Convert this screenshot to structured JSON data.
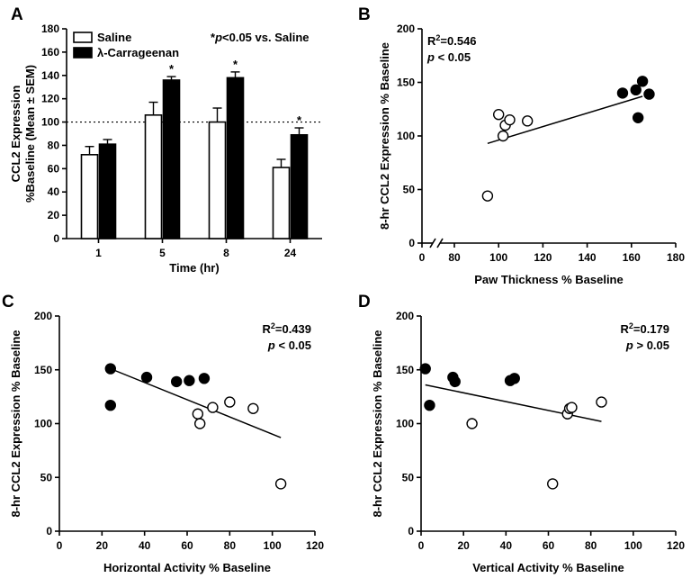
{
  "chart_data": [
    {
      "panel": "A",
      "type": "bar",
      "title": "",
      "xlabel": "Time (hr)",
      "ylabel_line1": "CCL2 Expression",
      "ylabel_line2": "%Baseline (Mean ± SEM)",
      "ylim": [
        0,
        180
      ],
      "yticks": [
        0,
        20,
        40,
        60,
        80,
        100,
        120,
        140,
        160,
        180
      ],
      "categories": [
        "1",
        "5",
        "8",
        "24"
      ],
      "reference_line": 100,
      "series": [
        {
          "name": "Saline",
          "color": "#ffffff",
          "values": [
            72,
            106,
            100,
            61
          ],
          "errors": [
            7,
            11,
            12,
            7
          ]
        },
        {
          "name": "λ-Carrageenan",
          "color": "#000000",
          "values": [
            81,
            136,
            138,
            89
          ],
          "errors": [
            4,
            3,
            5,
            6
          ]
        }
      ],
      "significance_marker": "*",
      "significant_categories": [
        "5",
        "8",
        "24"
      ],
      "annotation": {
        "star": "*",
        "p": "p",
        "rest": "<0.05 vs. Saline"
      }
    },
    {
      "panel": "B",
      "type": "scatter",
      "xlabel": "Paw Thickness % Baseline",
      "ylabel": "8-hr CCL2 Expression % Baseline",
      "ylim": [
        0,
        200
      ],
      "yticks": [
        0,
        50,
        100,
        150,
        200
      ],
      "xticks": [
        0,
        80,
        100,
        120,
        140,
        160,
        180
      ],
      "axis_break": true,
      "r2_prefix": "R",
      "r2_sup": "2",
      "r2_value": "=0.546",
      "p_letter": "p",
      "p_rest": " < 0.05",
      "saline_points": [
        [
          100,
          120
        ],
        [
          102,
          100
        ],
        [
          103,
          110
        ],
        [
          105,
          115
        ],
        [
          113,
          114
        ],
        [
          95,
          44
        ]
      ],
      "carrageenan_points": [
        [
          156,
          140
        ],
        [
          162,
          143
        ],
        [
          165,
          151
        ],
        [
          168,
          139
        ],
        [
          163,
          117
        ]
      ],
      "regression": [
        [
          95,
          93
        ],
        [
          165,
          137
        ]
      ]
    },
    {
      "panel": "C",
      "type": "scatter",
      "xlabel": "Horizontal Activity % Baseline",
      "ylabel": "8-hr CCL2 Expression % Baseline",
      "xlim": [
        0,
        120
      ],
      "ylim": [
        0,
        200
      ],
      "xticks": [
        0,
        20,
        40,
        60,
        80,
        100,
        120
      ],
      "yticks": [
        0,
        50,
        100,
        150,
        200
      ],
      "r2_prefix": "R",
      "r2_sup": "2",
      "r2_value": "=0.439",
      "p_letter": "p",
      "p_rest": " < 0.05",
      "saline_points": [
        [
          65,
          109
        ],
        [
          66,
          100
        ],
        [
          72,
          115
        ],
        [
          80,
          120
        ],
        [
          91,
          114
        ],
        [
          104,
          44
        ]
      ],
      "carrageenan_points": [
        [
          24,
          151
        ],
        [
          24,
          117
        ],
        [
          41,
          143
        ],
        [
          55,
          139
        ],
        [
          61,
          140
        ],
        [
          68,
          142
        ]
      ],
      "regression": [
        [
          24,
          151
        ],
        [
          104,
          87
        ]
      ]
    },
    {
      "panel": "D",
      "type": "scatter",
      "xlabel": "Vertical Activity % Baseline",
      "ylabel": "8-hr CCL2 Expression % Baseline",
      "xlim": [
        0,
        120
      ],
      "ylim": [
        0,
        200
      ],
      "xticks": [
        0,
        20,
        40,
        60,
        80,
        100,
        120
      ],
      "yticks": [
        0,
        50,
        100,
        150,
        200
      ],
      "r2_prefix": "R",
      "r2_sup": "2",
      "r2_value": "=0.179",
      "p_letter": "p",
      "p_rest": " > 0.05",
      "saline_points": [
        [
          24,
          100
        ],
        [
          62,
          44
        ],
        [
          69,
          109
        ],
        [
          70,
          114
        ],
        [
          71,
          115
        ],
        [
          85,
          120
        ]
      ],
      "carrageenan_points": [
        [
          2,
          151
        ],
        [
          4,
          117
        ],
        [
          15,
          143
        ],
        [
          16,
          139
        ],
        [
          42,
          140
        ],
        [
          44,
          142
        ]
      ],
      "regression": [
        [
          2,
          136
        ],
        [
          85,
          102
        ]
      ]
    }
  ]
}
